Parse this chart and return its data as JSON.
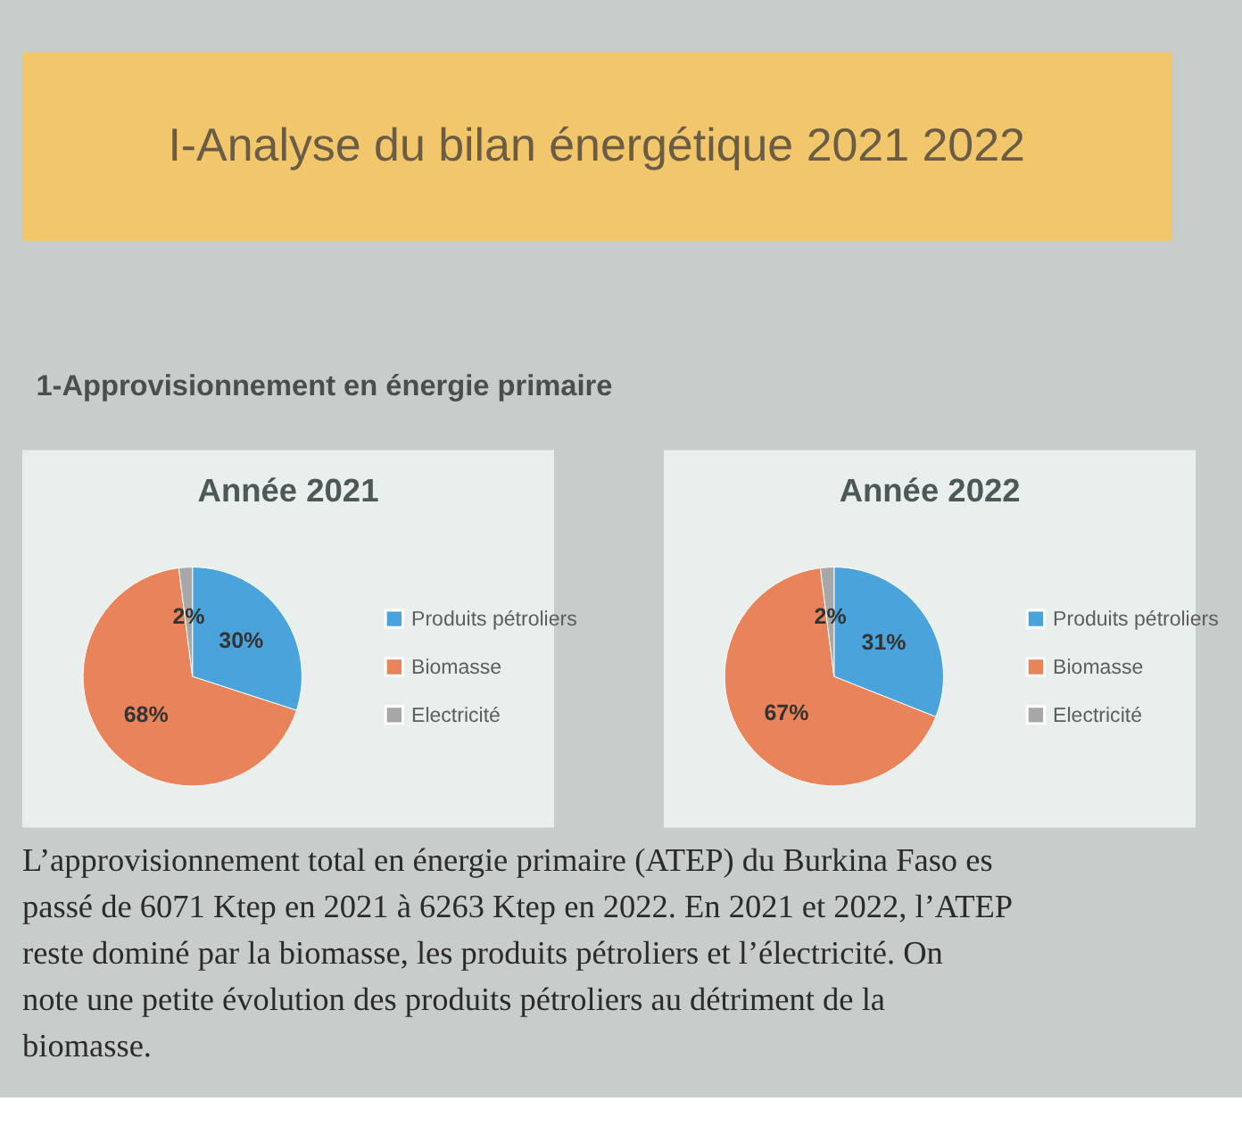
{
  "chart_data": [
    {
      "type": "other",
      "title": "I-Analyse du bilan énergétique 2021 2022",
      "subtitle": "1-Approvisionnement en énergie primaire"
    },
    {
      "type": "pie",
      "title": "Année 2021",
      "categories": [
        "Produits pétroliers",
        "Biomasse",
        "Electricité"
      ],
      "values": [
        30,
        68,
        2
      ],
      "colors": [
        "#4ba3dc",
        "#e8835a",
        "#a7a7a7"
      ],
      "value_labels": [
        "30%",
        "68%",
        "2%"
      ],
      "legend": "right"
    },
    {
      "type": "pie",
      "title": "Année 2022",
      "categories": [
        "Produits pétroliers",
        "Biomasse",
        "Electricité"
      ],
      "values": [
        31,
        67,
        2
      ],
      "colors": [
        "#4ba3dc",
        "#e8835a",
        "#a7a7a7"
      ],
      "value_labels": [
        "31%",
        "67%",
        "2%"
      ],
      "legend": "right"
    },
    {
      "type": "other",
      "annotations": [
        "L’approvisionnement total en énergie primaire (ATEP) du Burkina Faso es",
        "passé de 6071 Ktep en 2021 à 6263 Ktep en 2022.  En 2021 et 2022, l’ATEP",
        "reste dominé par la biomasse, les produits pétroliers et l’électricité. On",
        "note une petite évolution des produits pétroliers au détriment de la",
        "biomasse."
      ]
    }
  ]
}
